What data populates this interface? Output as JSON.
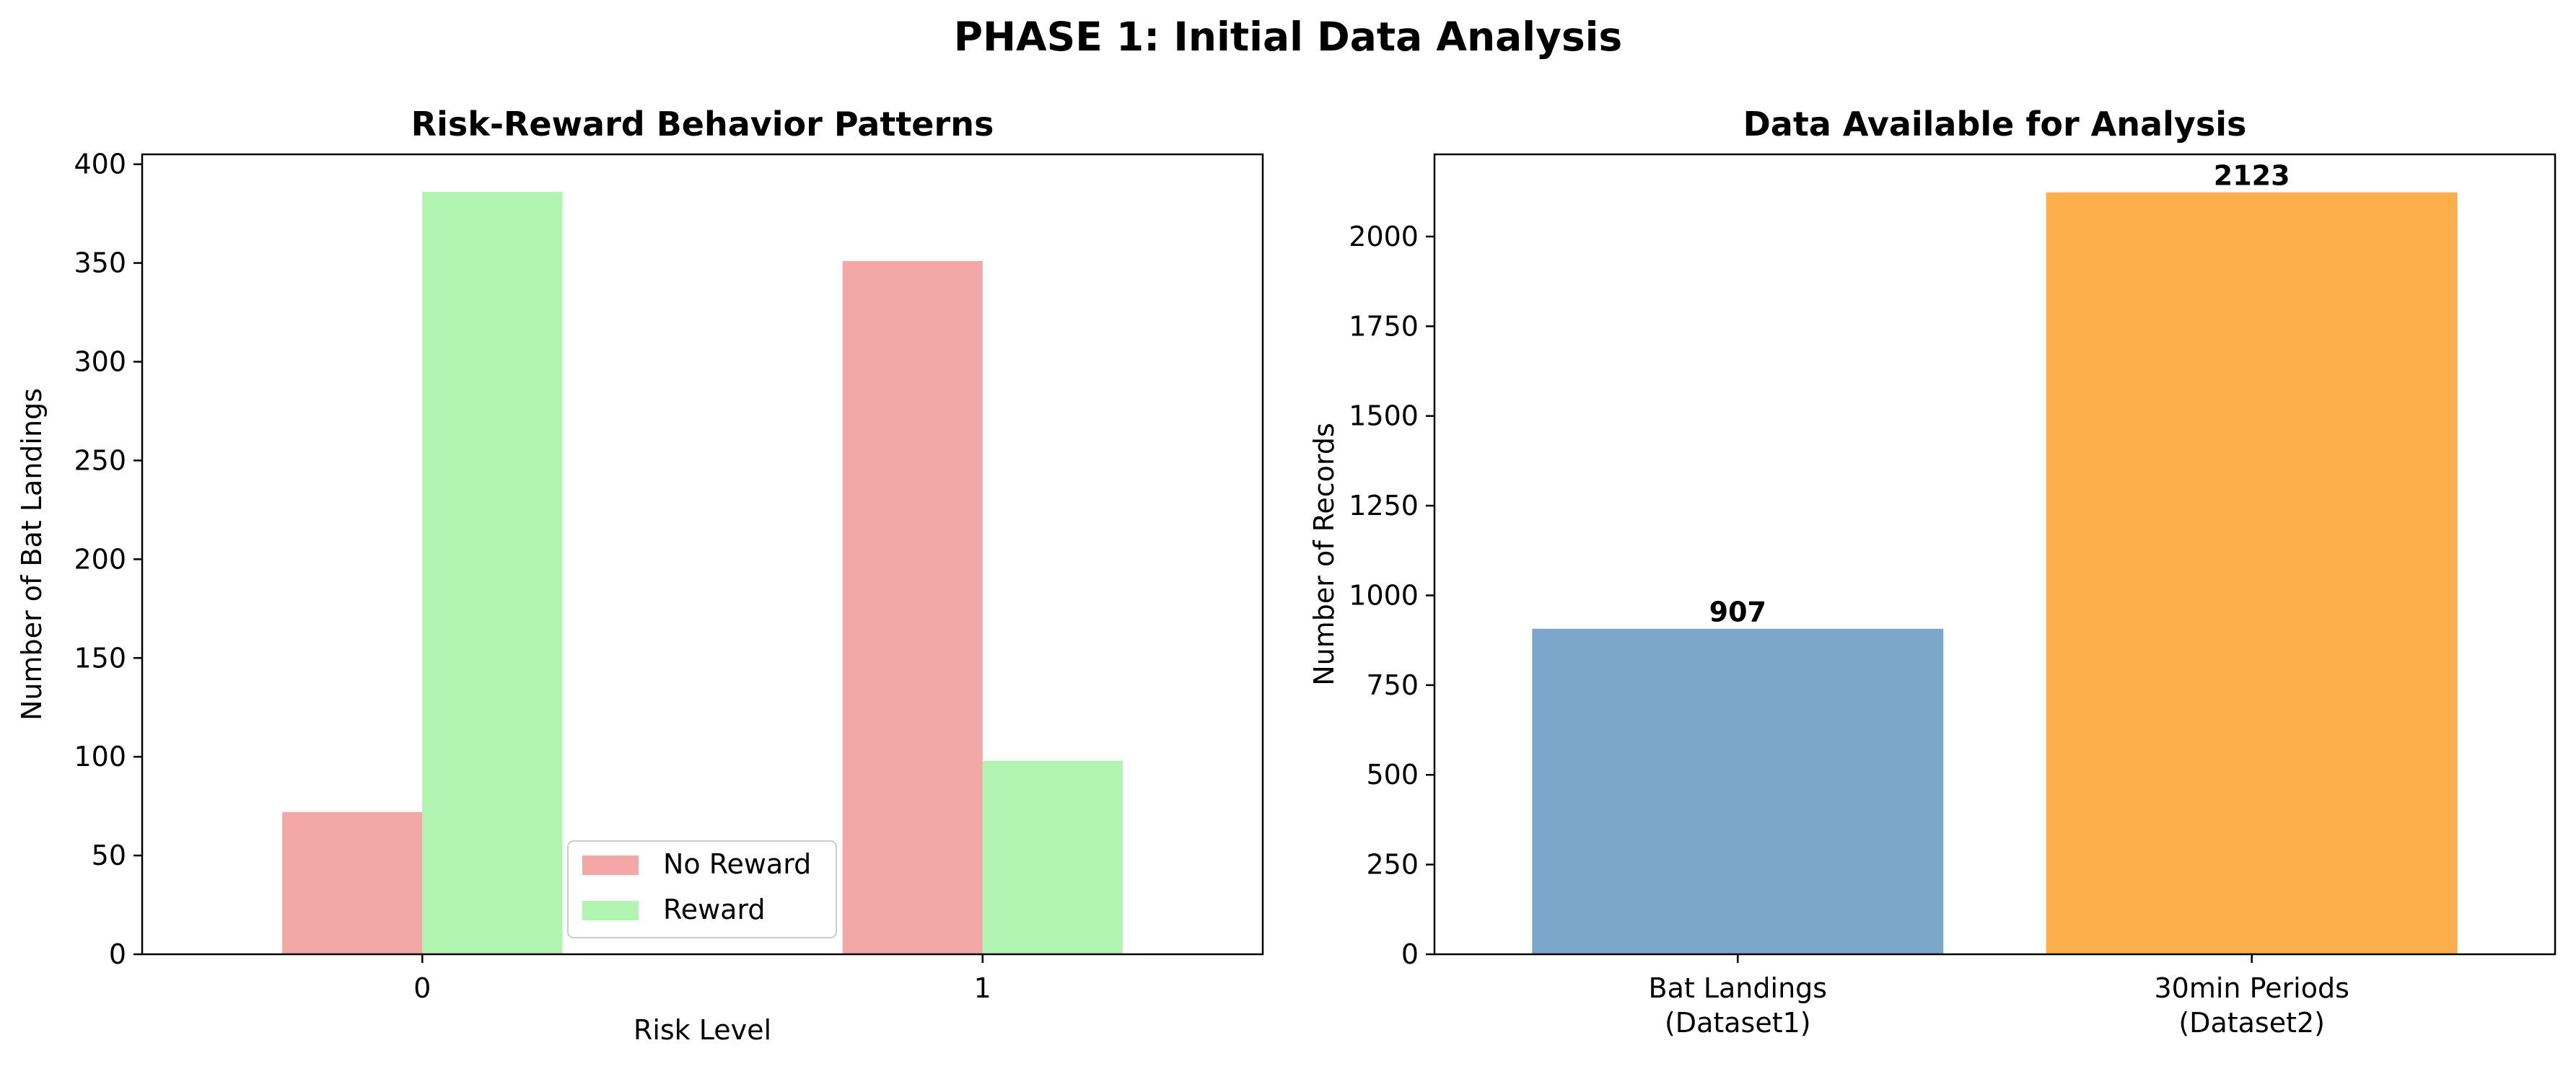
{
  "figure": {
    "suptitle": "PHASE 1: Initial Data Analysis"
  },
  "chart_data": [
    {
      "type": "bar",
      "title": "Risk-Reward Behavior Patterns",
      "xlabel": "Risk Level",
      "ylabel": "Number of Bat Landings",
      "categories": [
        "0",
        "1"
      ],
      "series": [
        {
          "name": "No Reward",
          "values": [
            72,
            351
          ],
          "color": "#f4a7a7"
        },
        {
          "name": "Reward",
          "values": [
            386,
            98
          ],
          "color": "#b1f4b1"
        }
      ],
      "ylim": [
        0,
        405
      ],
      "yticks": [
        0,
        50,
        100,
        150,
        200,
        250,
        300,
        350,
        400
      ],
      "legend": "lower-center",
      "grid": false
    },
    {
      "type": "bar",
      "title": "Data Available for Analysis",
      "xlabel": "",
      "ylabel": "Number of Records",
      "categories": [
        "Bat Landings\n(Dataset1)",
        "30min Periods\n(Dataset2)"
      ],
      "values": [
        907,
        2123
      ],
      "colors": [
        "#7ca7cb",
        "#fcae4b"
      ],
      "data_labels": [
        "907",
        "2123"
      ],
      "ylim": [
        0,
        2229
      ],
      "yticks": [
        0,
        250,
        500,
        750,
        1000,
        1250,
        1500,
        1750,
        2000
      ],
      "grid": false
    }
  ]
}
